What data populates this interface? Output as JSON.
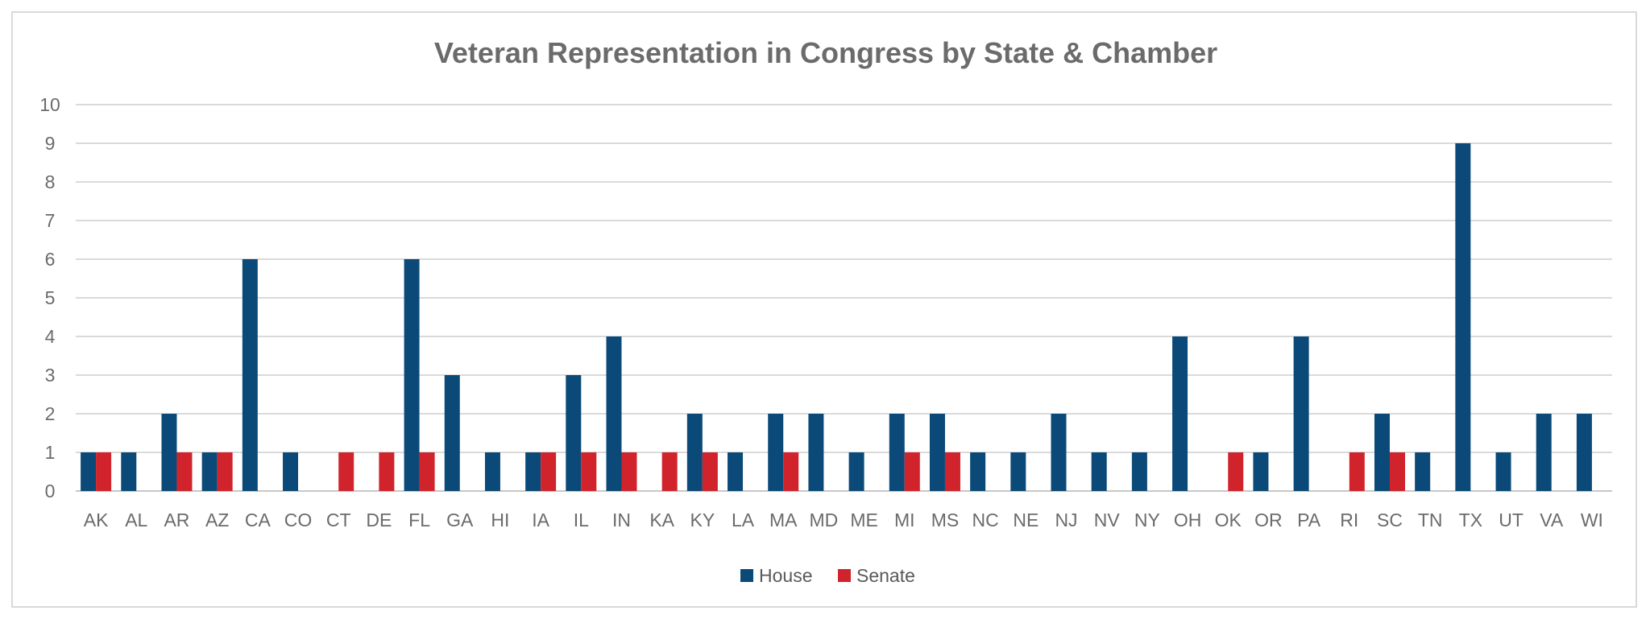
{
  "chart_data": {
    "type": "bar",
    "title": "Veteran Representation in Congress by State & Chamber",
    "xlabel": "",
    "ylabel": "",
    "ylim": [
      0,
      10
    ],
    "y_ticks": [
      0,
      1,
      2,
      3,
      4,
      5,
      6,
      7,
      8,
      9,
      10
    ],
    "grid": true,
    "legend": "bottom",
    "categories": [
      "AK",
      "AL",
      "AR",
      "AZ",
      "CA",
      "CO",
      "CT",
      "DE",
      "FL",
      "GA",
      "HI",
      "IA",
      "IL",
      "IN",
      "KA",
      "KY",
      "LA",
      "MA",
      "MD",
      "ME",
      "MI",
      "MS",
      "NC",
      "NE",
      "NJ",
      "NV",
      "NY",
      "OH",
      "OK",
      "OR",
      "PA",
      "RI",
      "SC",
      "TN",
      "TX",
      "UT",
      "VA",
      "WI"
    ],
    "series": [
      {
        "name": "House",
        "color": "#0b4a78",
        "values": [
          1,
          1,
          2,
          1,
          6,
          1,
          0,
          0,
          6,
          3,
          1,
          1,
          3,
          4,
          0,
          2,
          1,
          2,
          2,
          1,
          2,
          2,
          1,
          1,
          2,
          1,
          1,
          4,
          0,
          1,
          4,
          0,
          2,
          1,
          9,
          1,
          2,
          2
        ]
      },
      {
        "name": "Senate",
        "color": "#d0232b",
        "values": [
          1,
          0,
          1,
          1,
          0,
          0,
          1,
          1,
          1,
          0,
          0,
          1,
          1,
          1,
          1,
          1,
          0,
          1,
          0,
          0,
          1,
          1,
          0,
          0,
          0,
          0,
          0,
          0,
          1,
          0,
          0,
          1,
          1,
          0,
          0,
          0,
          0,
          0
        ]
      }
    ]
  }
}
